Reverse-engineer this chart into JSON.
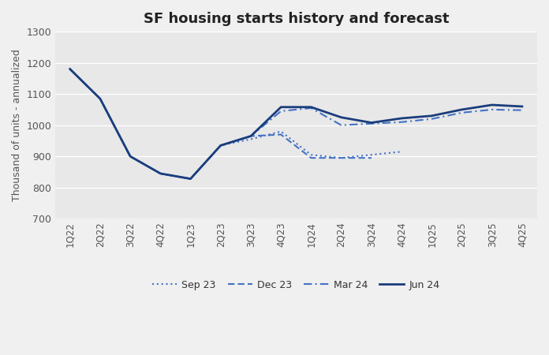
{
  "title_bold": "SF",
  "title_rest": " housing starts history and forecast",
  "ylabel": "Thousand of units - annualized",
  "ylim": [
    700,
    1300
  ],
  "yticks": [
    700,
    800,
    900,
    1000,
    1100,
    1200,
    1300
  ],
  "fig_bg_color": "#f0f0f0",
  "plot_bg_color": "#e8e8e8",
  "x_labels": [
    "1Q22",
    "2Q22",
    "3Q22",
    "4Q22",
    "1Q23",
    "2Q23",
    "3Q23",
    "4Q23",
    "1Q24",
    "2Q24",
    "3Q24",
    "4Q24",
    "1Q25",
    "2Q25",
    "3Q25",
    "4Q25"
  ],
  "series": [
    {
      "name": "Sep 23",
      "color": "#4472c4",
      "linestyle": "dotted",
      "linewidth": 1.5,
      "values": [
        1180,
        1085,
        900,
        845,
        828,
        935,
        955,
        980,
        905,
        895,
        905,
        915,
        null,
        null,
        null,
        null
      ]
    },
    {
      "name": "Dec 23",
      "color": "#4472c4",
      "linestyle": "dashed",
      "linewidth": 1.5,
      "values": [
        1180,
        1085,
        900,
        845,
        828,
        935,
        965,
        970,
        895,
        895,
        895,
        null,
        null,
        null,
        null,
        null
      ]
    },
    {
      "name": "Mar 24",
      "color": "#4472c4",
      "linestyle": "dashdot",
      "linewidth": 1.5,
      "values": [
        1180,
        1085,
        900,
        845,
        828,
        935,
        965,
        1045,
        1055,
        1000,
        1005,
        1010,
        1020,
        1040,
        1050,
        1048
      ]
    },
    {
      "name": "Jun 24",
      "color": "#1a3d7c",
      "linestyle": "solid",
      "linewidth": 2.0,
      "values": [
        1180,
        1085,
        900,
        845,
        828,
        935,
        965,
        1058,
        1058,
        1025,
        1008,
        1022,
        1030,
        1050,
        1065,
        1060
      ]
    }
  ]
}
